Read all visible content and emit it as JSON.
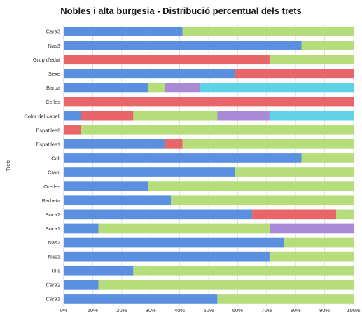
{
  "chart_data": {
    "type": "bar",
    "orientation": "horizontal",
    "stacked": true,
    "title": "Nobles i alta burgesia - Distribució percentual dels trets",
    "ylabel": "Trets",
    "xlabel": "",
    "xlim": [
      0,
      100
    ],
    "x_ticks": [
      "0%",
      "10%",
      "20%",
      "30%",
      "40%",
      "50%",
      "60%",
      "70%",
      "80%",
      "90%",
      "100%"
    ],
    "grid": true,
    "legend": "none",
    "categories": [
      "Cara3",
      "Nas3",
      "Grup d'edat",
      "Sexe",
      "Barba",
      "Celles",
      "Color del cabell",
      "Espatlles2",
      "Espatlles1",
      "Coll",
      "Crani",
      "Orelles",
      "Barbeta",
      "Boca2",
      "Boca1",
      "Nas2",
      "Nas1",
      "Ulls",
      "Cara2",
      "Cara1"
    ],
    "series": [
      {
        "color": "#5b8fe0",
        "values": [
          41,
          82,
          0,
          59,
          29,
          0,
          6,
          0,
          35,
          82,
          59,
          29,
          37,
          65,
          12,
          76,
          71,
          24,
          12,
          53
        ]
      },
      {
        "color": "#e8666a",
        "values": [
          0,
          0,
          71,
          41,
          0,
          100,
          18,
          6,
          6,
          0,
          0,
          0,
          0,
          29,
          0,
          0,
          0,
          0,
          0,
          0
        ]
      },
      {
        "color": "#b5dd7a",
        "values": [
          59,
          18,
          29,
          0,
          6,
          0,
          29,
          94,
          59,
          18,
          41,
          71,
          63,
          6,
          59,
          24,
          29,
          76,
          88,
          47
        ]
      },
      {
        "color": "#a98ad6",
        "values": [
          0,
          0,
          0,
          0,
          12,
          0,
          18,
          0,
          0,
          0,
          0,
          0,
          0,
          0,
          29,
          0,
          0,
          0,
          0,
          0
        ]
      },
      {
        "color": "#5fd2e8",
        "values": [
          0,
          0,
          0,
          0,
          53,
          0,
          29,
          0,
          0,
          0,
          0,
          0,
          0,
          0,
          0,
          0,
          0,
          0,
          0,
          0
        ]
      }
    ]
  }
}
